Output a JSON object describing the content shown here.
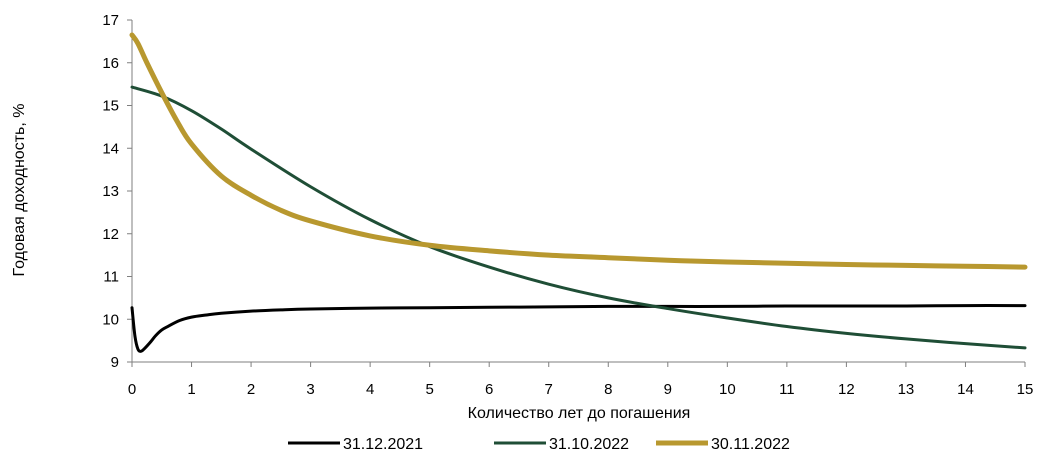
{
  "chart_data": {
    "type": "line",
    "xlabel": "Количество лет до погашения",
    "ylabel": "Годовая доходность, %",
    "xlim": [
      0,
      15
    ],
    "ylim": [
      9,
      17
    ],
    "x_ticks": [
      0,
      1,
      2,
      3,
      4,
      5,
      6,
      7,
      8,
      9,
      10,
      11,
      12,
      13,
      14,
      15
    ],
    "y_ticks": [
      9,
      10,
      11,
      12,
      13,
      14,
      15,
      16,
      17
    ],
    "grid": false,
    "legend_position": "bottom",
    "series": [
      {
        "name": "31.12.2021",
        "color": "#000000",
        "x": [
          0,
          0.05,
          0.1,
          0.15,
          0.2,
          0.3,
          0.4,
          0.5,
          0.6,
          0.8,
          1,
          1.25,
          1.5,
          2,
          2.5,
          3,
          4,
          5,
          6,
          7,
          8,
          9,
          10,
          11,
          12,
          13,
          14,
          15
        ],
        "y": [
          10.27,
          9.6,
          9.3,
          9.25,
          9.3,
          9.45,
          9.62,
          9.75,
          9.83,
          9.97,
          10.05,
          10.1,
          10.14,
          10.19,
          10.22,
          10.24,
          10.26,
          10.27,
          10.28,
          10.29,
          10.3,
          10.3,
          10.3,
          10.31,
          10.31,
          10.31,
          10.32,
          10.32
        ]
      },
      {
        "name": "31.10.2022",
        "color": "#1f4e36",
        "x": [
          0,
          0.5,
          1,
          1.5,
          2,
          3,
          4,
          5,
          6,
          7,
          8,
          9,
          10,
          11,
          12,
          13,
          14,
          15
        ],
        "y": [
          15.43,
          15.22,
          14.88,
          14.45,
          13.98,
          13.1,
          12.33,
          11.7,
          11.22,
          10.82,
          10.5,
          10.25,
          10.03,
          9.83,
          9.67,
          9.54,
          9.43,
          9.33
        ]
      },
      {
        "name": "30.11.2022",
        "color": "#b8982f",
        "x": [
          0,
          0.1,
          0.25,
          0.5,
          0.75,
          1,
          1.5,
          2,
          2.5,
          3,
          4,
          5,
          6,
          7,
          8,
          9,
          10,
          11,
          12,
          13,
          14,
          15
        ],
        "y": [
          16.65,
          16.45,
          16.0,
          15.3,
          14.65,
          14.1,
          13.35,
          12.9,
          12.55,
          12.3,
          11.95,
          11.73,
          11.6,
          11.5,
          11.44,
          11.38,
          11.34,
          11.31,
          11.28,
          11.26,
          11.24,
          11.22
        ]
      }
    ]
  }
}
